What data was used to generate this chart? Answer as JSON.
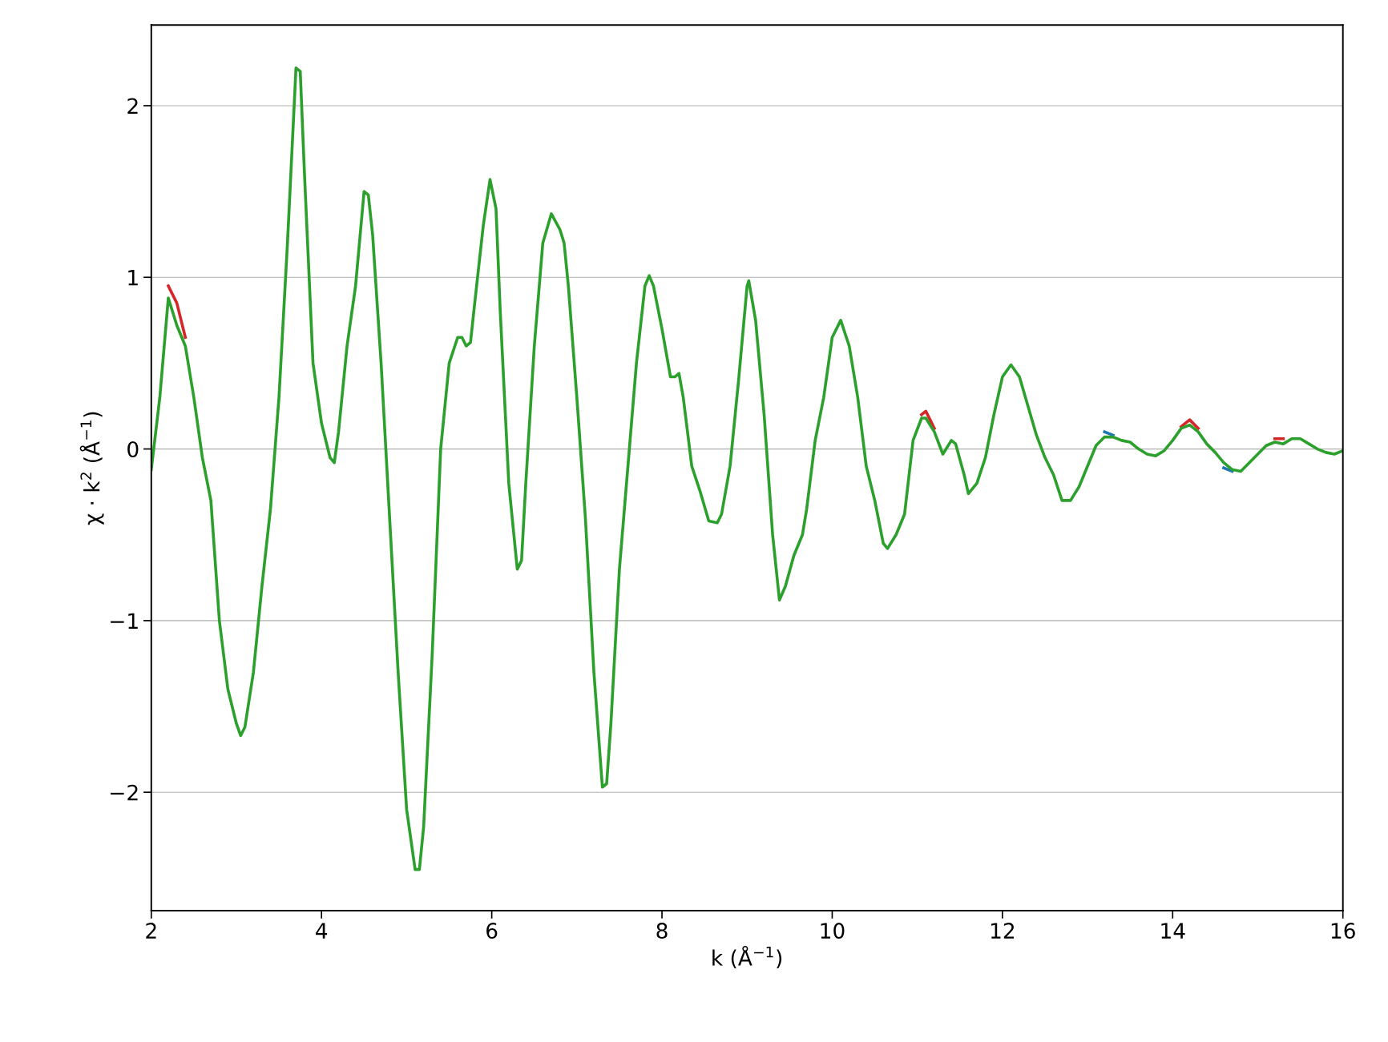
{
  "chart_data": {
    "type": "line",
    "xlabel": "k (Å$^{−1}$)",
    "ylabel": "χ · k$^{2}$ (Å$^{−1}$)",
    "xlim": [
      2,
      16
    ],
    "xticks": [
      2,
      4,
      6,
      8,
      10,
      12,
      14,
      16
    ],
    "ylim": [
      -2.69,
      2.47
    ],
    "yticks": [
      {
        "value": -2,
        "label": "−2"
      },
      {
        "value": -1,
        "label": "−1"
      },
      0,
      1,
      2
    ],
    "grid": "y",
    "line_style": "solid",
    "marker": "none",
    "x": [
      2.0,
      2.1,
      2.2,
      2.3,
      2.4,
      2.5,
      2.6,
      2.7,
      2.8,
      2.9,
      3.0,
      3.05,
      3.1,
      3.2,
      3.3,
      3.4,
      3.5,
      3.6,
      3.7,
      3.75,
      3.8,
      3.9,
      4.0,
      4.1,
      4.15,
      4.2,
      4.3,
      4.4,
      4.5,
      4.55,
      4.6,
      4.7,
      4.8,
      4.9,
      5.0,
      5.1,
      5.15,
      5.2,
      5.3,
      5.4,
      5.5,
      5.6,
      5.65,
      5.7,
      5.75,
      5.8,
      5.9,
      5.98,
      6.05,
      6.1,
      6.2,
      6.3,
      6.35,
      6.4,
      6.5,
      6.6,
      6.7,
      6.8,
      6.85,
      6.9,
      7.0,
      7.1,
      7.2,
      7.3,
      7.35,
      7.4,
      7.5,
      7.6,
      7.7,
      7.8,
      7.85,
      7.9,
      8.0,
      8.1,
      8.15,
      8.2,
      8.25,
      8.35,
      8.45,
      8.55,
      8.65,
      8.7,
      8.8,
      8.9,
      9.0,
      9.02,
      9.1,
      9.2,
      9.3,
      9.38,
      9.45,
      9.55,
      9.65,
      9.7,
      9.8,
      9.9,
      10.0,
      10.1,
      10.2,
      10.3,
      10.4,
      10.5,
      10.6,
      10.65,
      10.75,
      10.85,
      10.95,
      11.05,
      11.1,
      11.2,
      11.3,
      11.4,
      11.45,
      11.55,
      11.6,
      11.7,
      11.8,
      11.9,
      12.0,
      12.1,
      12.2,
      12.3,
      12.4,
      12.5,
      12.6,
      12.7,
      12.8,
      12.9,
      13.0,
      13.1,
      13.2,
      13.3,
      13.4,
      13.5,
      13.6,
      13.7,
      13.8,
      13.9,
      14.0,
      14.1,
      14.2,
      14.3,
      14.4,
      14.5,
      14.6,
      14.7,
      14.8,
      14.9,
      15.0,
      15.1,
      15.2,
      15.3,
      15.4,
      15.5,
      15.6,
      15.7,
      15.8,
      15.9,
      16.0
    ],
    "series": [
      {
        "color": "#d62728",
        "x": [
          2.2,
          2.3,
          2.4,
          5.0,
          11.05,
          11.1,
          11.2,
          13.0,
          14.1,
          14.2,
          14.3,
          14.8,
          15.2,
          15.3
        ],
        "values": [
          0.95,
          0.85,
          0.65,
          null,
          0.2,
          0.22,
          0.12,
          null,
          0.13,
          0.17,
          0.12,
          null,
          0.06,
          0.06
        ]
      },
      {
        "color": "#1f77b4",
        "x": [
          13.2,
          13.3,
          14.0,
          14.6,
          14.7
        ],
        "values": [
          0.1,
          0.08,
          null,
          -0.11,
          -0.13
        ]
      },
      {
        "color": "#2ca02c",
        "values": [
          -0.12,
          0.3,
          0.88,
          0.72,
          0.6,
          0.3,
          -0.05,
          -0.3,
          -1.0,
          -1.4,
          -1.6,
          -1.67,
          -1.62,
          -1.3,
          -0.8,
          -0.35,
          0.3,
          1.2,
          2.22,
          2.2,
          1.6,
          0.5,
          0.15,
          -0.05,
          -0.08,
          0.1,
          0.6,
          0.95,
          1.5,
          1.48,
          1.25,
          0.5,
          -0.4,
          -1.3,
          -2.1,
          -2.45,
          -2.45,
          -2.2,
          -1.2,
          0.0,
          0.5,
          0.65,
          0.65,
          0.6,
          0.62,
          0.85,
          1.3,
          1.57,
          1.4,
          0.8,
          -0.2,
          -0.7,
          -0.65,
          -0.2,
          0.6,
          1.2,
          1.37,
          1.28,
          1.2,
          0.95,
          0.3,
          -0.4,
          -1.3,
          -1.97,
          -1.95,
          -1.6,
          -0.7,
          -0.1,
          0.5,
          0.95,
          1.01,
          0.95,
          0.7,
          0.42,
          0.42,
          0.44,
          0.3,
          -0.1,
          -0.25,
          -0.42,
          -0.43,
          -0.38,
          -0.1,
          0.4,
          0.95,
          0.98,
          0.75,
          0.2,
          -0.5,
          -0.88,
          -0.8,
          -0.62,
          -0.5,
          -0.35,
          0.05,
          0.3,
          0.65,
          0.75,
          0.6,
          0.3,
          -0.1,
          -0.3,
          -0.55,
          -0.58,
          -0.5,
          -0.38,
          0.05,
          0.18,
          0.18,
          0.1,
          -0.03,
          0.05,
          0.03,
          -0.15,
          -0.26,
          -0.2,
          -0.05,
          0.2,
          0.42,
          0.49,
          0.42,
          0.25,
          0.08,
          -0.05,
          -0.15,
          -0.3,
          -0.3,
          -0.22,
          -0.1,
          0.02,
          0.07,
          0.07,
          0.05,
          0.04,
          0.0,
          -0.03,
          -0.04,
          -0.01,
          0.05,
          0.12,
          0.14,
          0.1,
          0.03,
          -0.02,
          -0.08,
          -0.12,
          -0.13,
          -0.08,
          -0.03,
          0.02,
          0.04,
          0.03,
          0.06,
          0.06,
          0.03,
          0.0,
          -0.02,
          -0.03,
          -0.01
        ]
      }
    ]
  }
}
